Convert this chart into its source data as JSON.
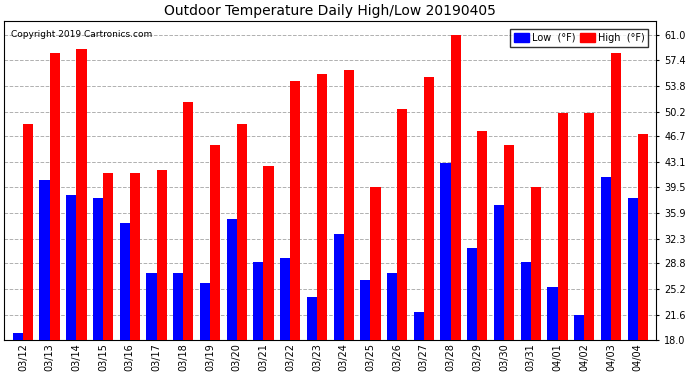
{
  "title": "Outdoor Temperature Daily High/Low 20190405",
  "copyright": "Copyright 2019 Cartronics.com",
  "dates": [
    "03/12",
    "03/13",
    "03/14",
    "03/15",
    "03/16",
    "03/17",
    "03/18",
    "03/19",
    "03/20",
    "03/21",
    "03/22",
    "03/23",
    "03/24",
    "03/25",
    "03/26",
    "03/27",
    "03/28",
    "03/29",
    "03/30",
    "03/31",
    "04/01",
    "04/02",
    "04/03",
    "04/04"
  ],
  "highs": [
    48.5,
    58.5,
    59.0,
    41.5,
    41.5,
    42.0,
    51.5,
    45.5,
    48.5,
    42.5,
    54.5,
    55.5,
    56.0,
    39.5,
    50.5,
    55.0,
    61.0,
    47.5,
    45.5,
    39.5,
    50.0,
    50.0,
    58.5,
    47.0
  ],
  "lows": [
    19.0,
    40.5,
    38.5,
    38.0,
    34.5,
    27.5,
    27.5,
    26.0,
    35.0,
    29.0,
    29.5,
    24.0,
    33.0,
    26.5,
    27.5,
    22.0,
    43.0,
    31.0,
    37.0,
    29.0,
    25.5,
    21.5,
    41.0,
    38.0
  ],
  "high_color": "#ff0000",
  "low_color": "#0000ff",
  "bg_color": "#ffffff",
  "grid_color": "#b0b0b0",
  "bar_width": 0.38,
  "ylim_min": 18.0,
  "ylim_max": 63.0,
  "yticks": [
    18.0,
    21.6,
    25.2,
    28.8,
    32.3,
    35.9,
    39.5,
    43.1,
    46.7,
    50.2,
    53.8,
    57.4,
    61.0
  ],
  "legend_low_label": "Low  (°F)",
  "legend_high_label": "High  (°F)",
  "figwidth": 6.9,
  "figheight": 3.75,
  "dpi": 100
}
